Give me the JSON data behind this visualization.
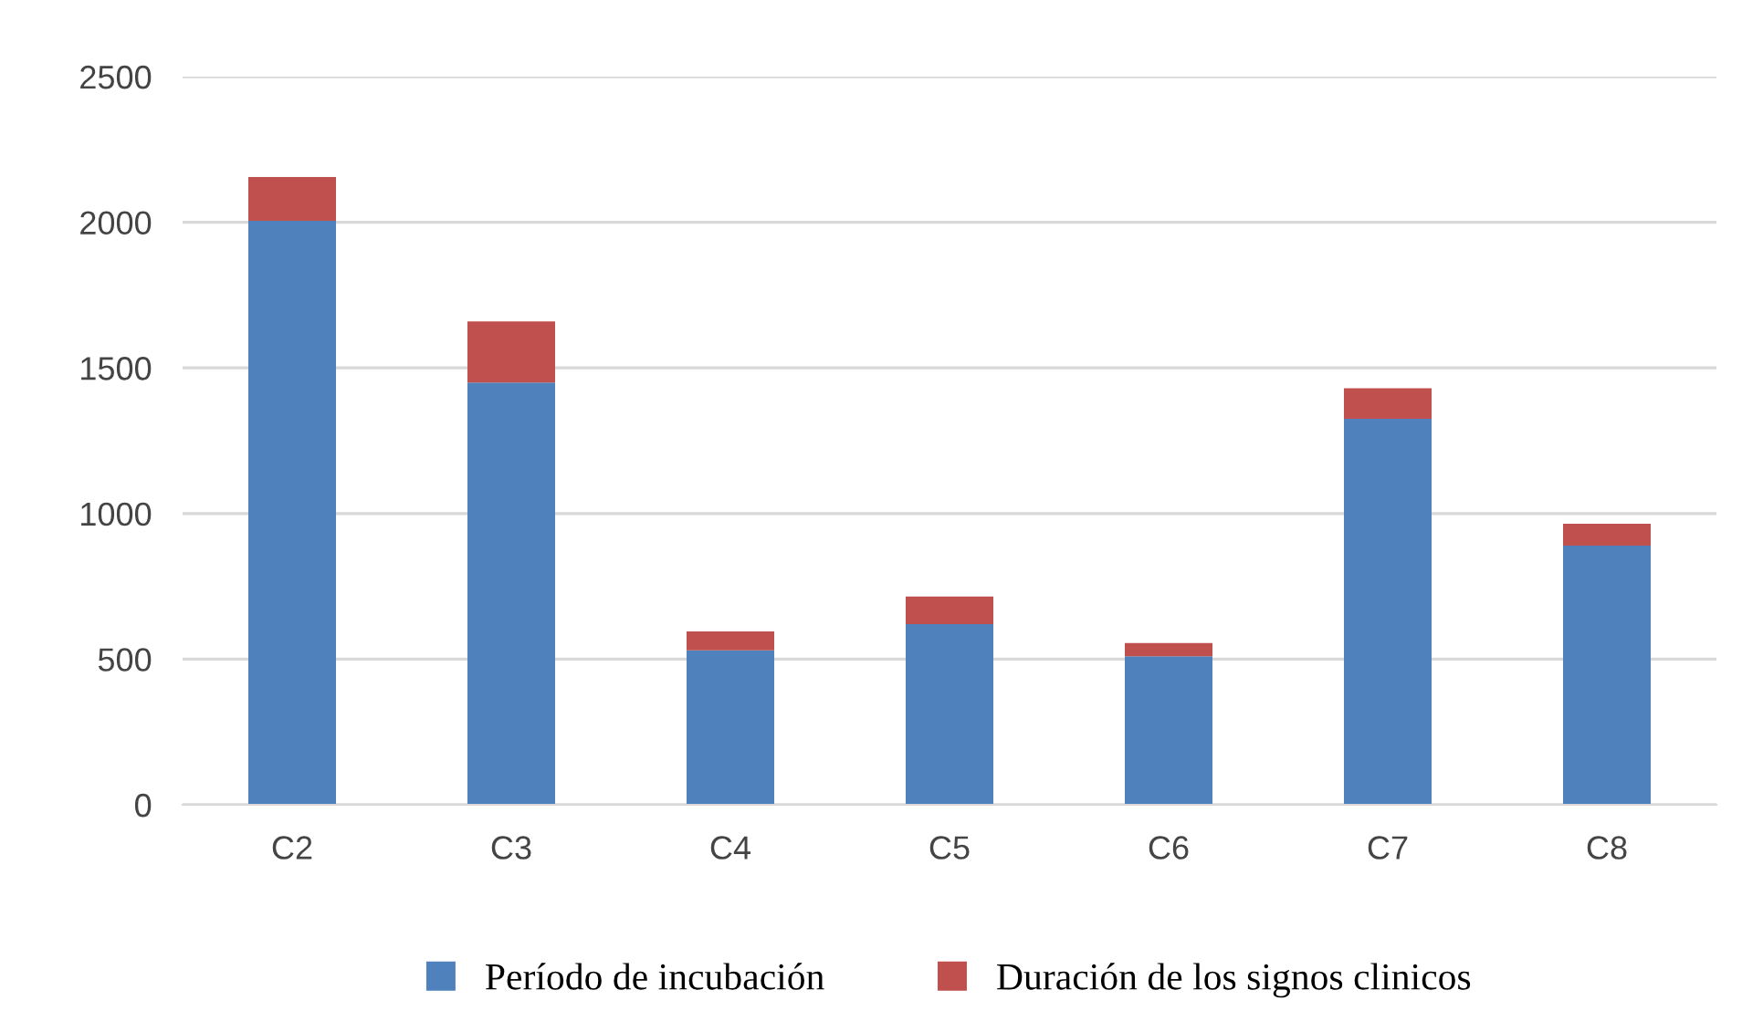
{
  "chart_data": {
    "type": "bar",
    "stacked": true,
    "categories": [
      "C2",
      "C3",
      "C4",
      "C5",
      "C6",
      "C7",
      "C8"
    ],
    "series": [
      {
        "name": "Período de incubación",
        "color": "#4f81bd",
        "values": [
          2005,
          1450,
          530,
          620,
          510,
          1325,
          890
        ]
      },
      {
        "name": "Duración de los signos clinicos",
        "color": "#c0504d",
        "values": [
          150,
          210,
          65,
          95,
          45,
          105,
          75
        ]
      }
    ],
    "ylim": [
      0,
      2500
    ],
    "yticks": [
      0,
      500,
      1000,
      1500,
      2000,
      2500
    ],
    "grid": "y",
    "legend": "bottom"
  }
}
